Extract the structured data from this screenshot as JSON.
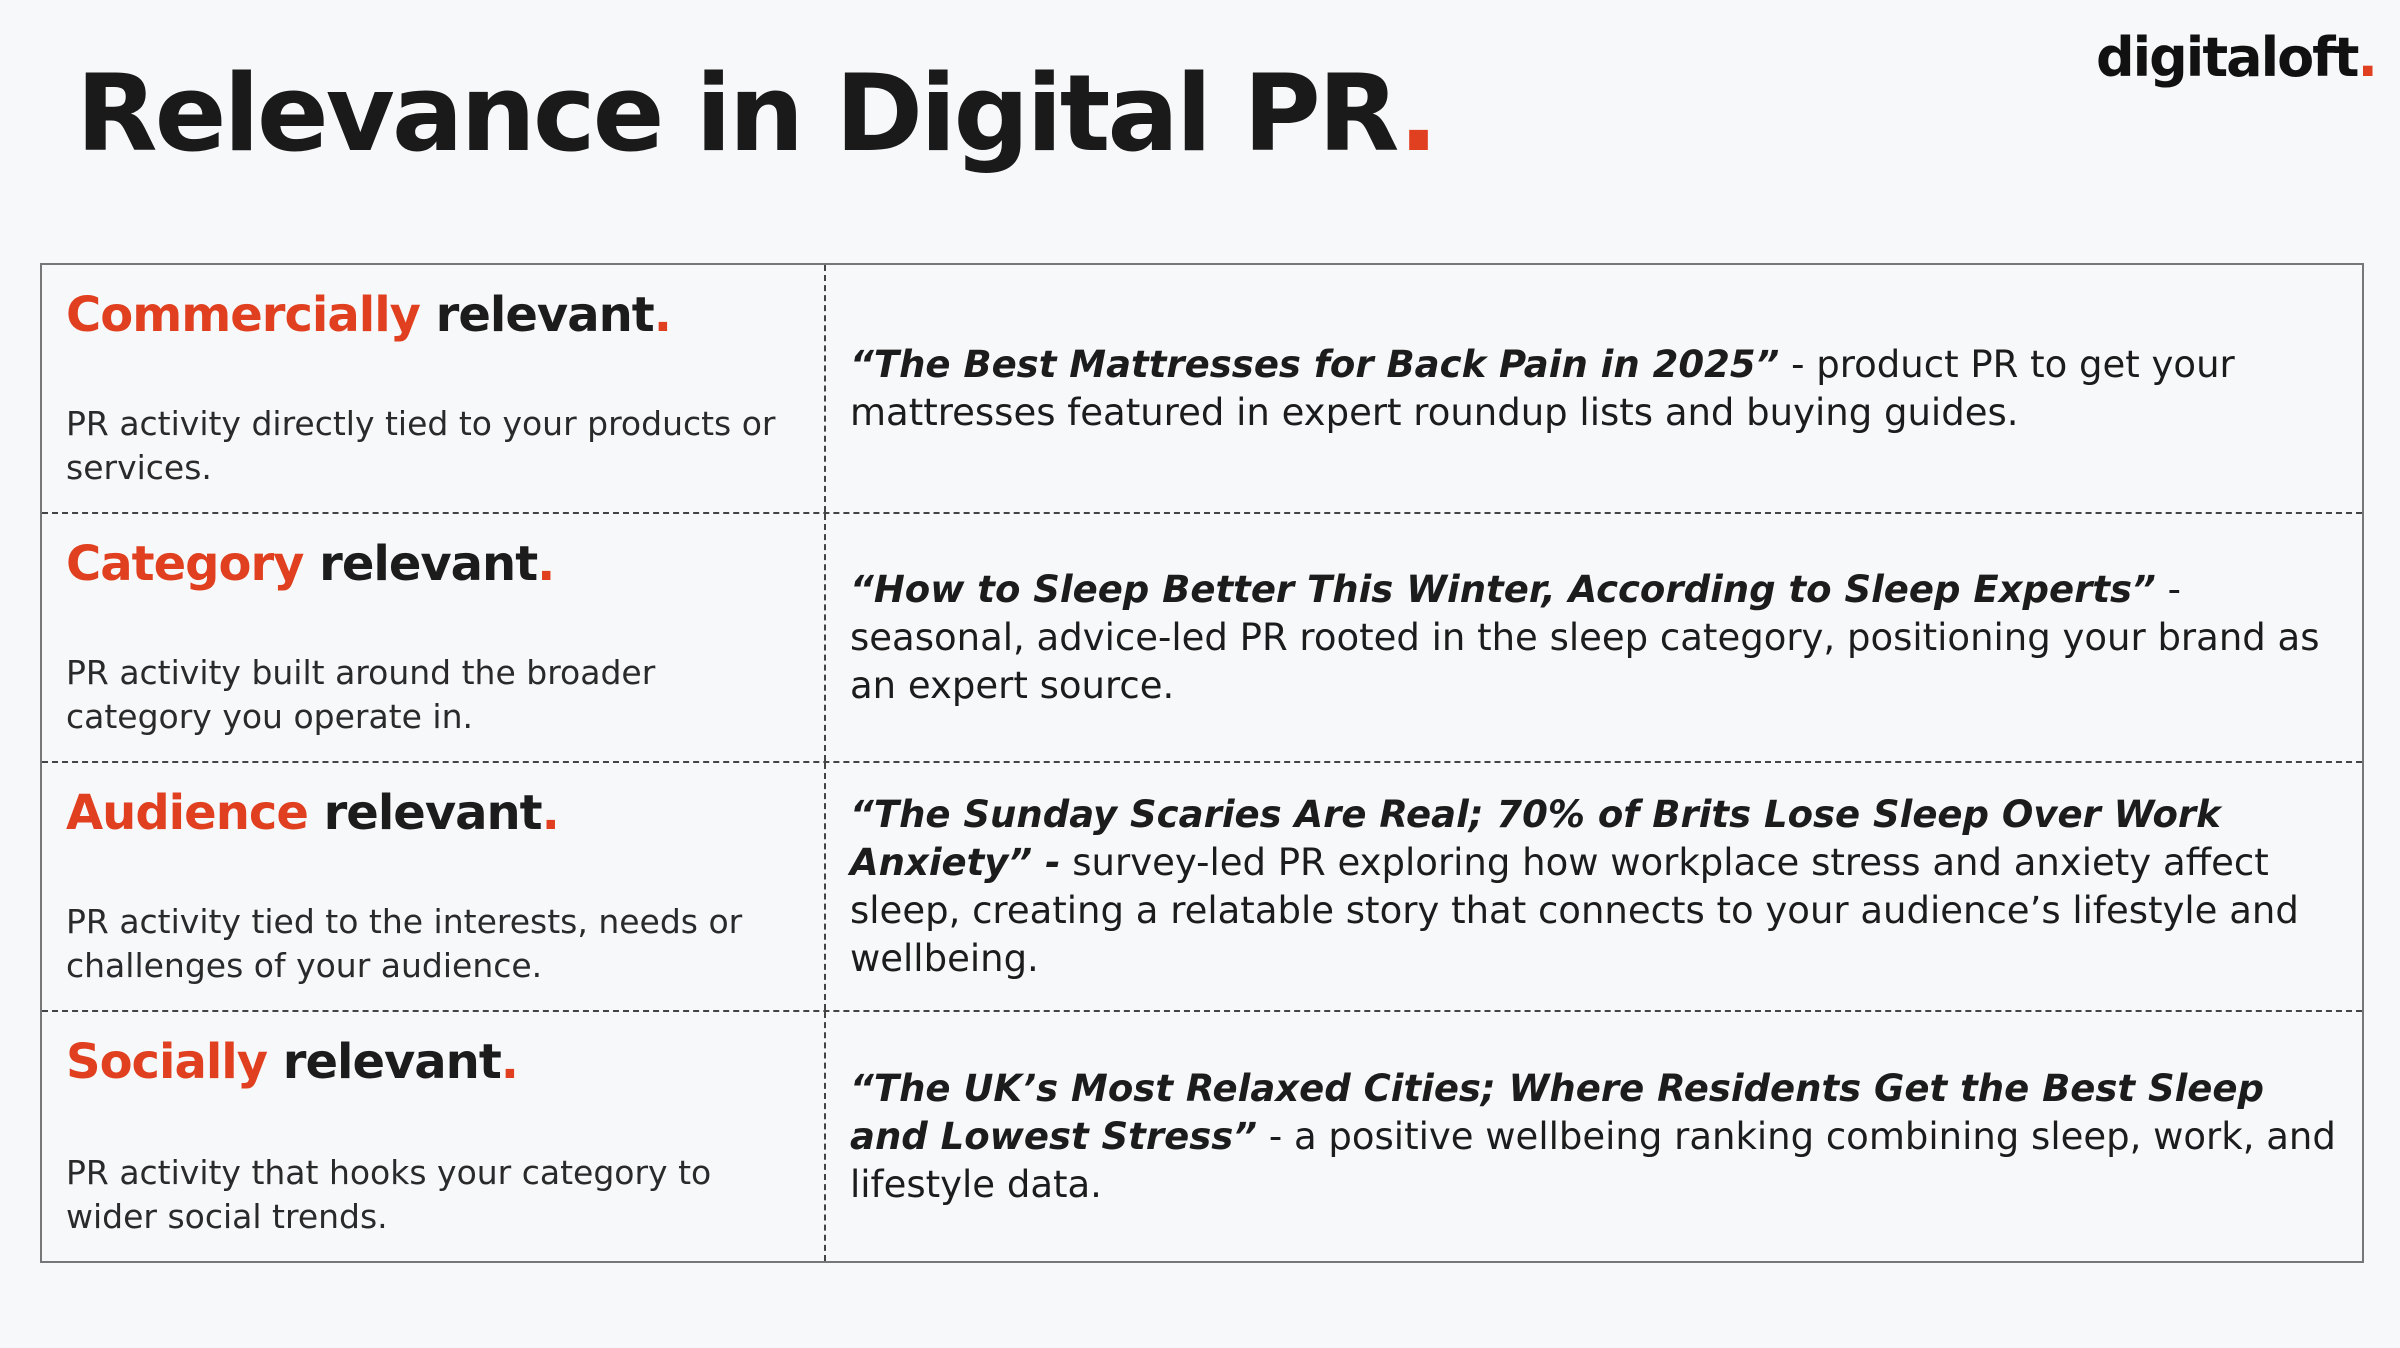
{
  "header": {
    "title": "Relevance in Digital PR",
    "title_dot": ".",
    "logo": "digitaloft",
    "logo_dot": "."
  },
  "table": {
    "rows": [
      {
        "highlight": "Commercially",
        "label": "relevant",
        "dot": ".",
        "description": "PR activity directly tied to your products or services.",
        "quote": "“The Best Mattresses for Back Pain in 2025”",
        "example": " - product PR to get your mattresses featured in expert roundup lists and buying guides."
      },
      {
        "highlight": "Category",
        "label": "relevant",
        "dot": ".",
        "description": "PR activity built around the broader category you operate in.",
        "quote": "“How to Sleep Better This Winter, According to Sleep Experts”",
        "example": " - seasonal, advice-led PR rooted in the sleep category, positioning your brand as an expert source."
      },
      {
        "highlight": "Audience",
        "label": "relevant",
        "dot": ".",
        "description": "PR activity tied to the interests, needs or challenges of your audience.",
        "quote": "“The Sunday Scaries Are Real; 70% of Brits Lose Sleep Over Work Anxiety” -",
        "example": " survey-led PR exploring how workplace stress and anxiety affect sleep, creating a relatable story that connects to your audience’s lifestyle and wellbeing."
      },
      {
        "highlight": "Socially",
        "label": "relevant",
        "dot": ".",
        "description": "PR activity that hooks your category to wider social trends.",
        "quote": "“The UK’s Most Relaxed Cities; Where Residents Get the Best Sleep and Lowest Stress”",
        "example": " - a positive wellbeing ranking combining sleep, work, and lifestyle data."
      }
    ]
  }
}
